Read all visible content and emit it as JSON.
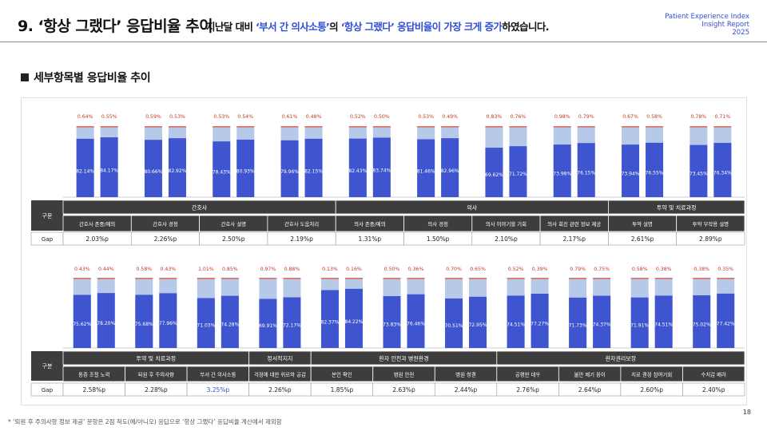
{
  "header": {
    "title": "9. ‘항상 그랬다’ 응답비율 추이",
    "subtitle_pre": "지난달 대비 ",
    "subtitle_hl1": "‘부서 간 의사소통’",
    "subtitle_mid": "의 ",
    "subtitle_hl2": "‘항상 그랬다’ 응답비율이 가장 크게 증가",
    "subtitle_post": "하였습니다.",
    "brand_line1": "Patient Experience Index",
    "brand_line2": "Insight Report",
    "brand_line3": "2025"
  },
  "section_title": "세부항목별 응답비율 추이",
  "footnote": "* ‘퇴원 후 주의사항 정보 제공’ 문항은 2점 척도(예/아니오) 응답으로 ‘항상 그랬다’ 응답비율 계산에서 제외함",
  "page_number": "18",
  "colors": {
    "dark_bar": "#3f54cf",
    "light_bar": "#b7c9e8",
    "top_bar": "#e06d5a",
    "table_header": "#3d3d3d",
    "highlight": "#2f4fd6"
  },
  "table_labels": {
    "row_header": "구분",
    "gap_label": "Gap"
  },
  "chart_data": [
    {
      "type": "bar",
      "stacked": true,
      "groups": [
        {
          "name": "간호사",
          "items": [
            {
              "label": "간호사 존중/예의",
              "gap": "2.03%p",
              "prev": {
                "main": "82.14%",
                "top": "0.64%",
                "main_v": 82.14
              },
              "curr": {
                "main": "84.17%",
                "top": "0.55%",
                "main_v": 84.17
              }
            },
            {
              "label": "간호사 경청",
              "gap": "2.26%p",
              "prev": {
                "main": "80.66%",
                "top": "0.59%",
                "main_v": 80.66
              },
              "curr": {
                "main": "82.92%",
                "top": "0.53%",
                "main_v": 82.92
              }
            },
            {
              "label": "간호사 설명",
              "gap": "2.50%p",
              "prev": {
                "main": "78.43%",
                "top": "0.53%",
                "main_v": 78.43
              },
              "curr": {
                "main": "80.93%",
                "top": "0.54%",
                "main_v": 80.93
              }
            },
            {
              "label": "간호사 도움처리",
              "gap": "2.19%p",
              "prev": {
                "main": "79.96%",
                "top": "0.61%",
                "main_v": 79.96
              },
              "curr": {
                "main": "82.15%",
                "top": "0.48%",
                "main_v": 82.15
              }
            }
          ]
        },
        {
          "name": "의사",
          "items": [
            {
              "label": "의사 존중/예의",
              "gap": "1.31%p",
              "prev": {
                "main": "82.43%",
                "top": "0.52%",
                "main_v": 82.43
              },
              "curr": {
                "main": "83.74%",
                "top": "0.50%",
                "main_v": 83.74
              }
            },
            {
              "label": "의사 경청",
              "gap": "1.50%p",
              "prev": {
                "main": "81.46%",
                "top": "0.53%",
                "main_v": 81.46
              },
              "curr": {
                "main": "82.96%",
                "top": "0.49%",
                "main_v": 82.96
              }
            },
            {
              "label": "의사 이야기할 기회",
              "gap": "2.10%p",
              "prev": {
                "main": "69.62%",
                "top": "0.83%",
                "main_v": 69.62
              },
              "curr": {
                "main": "71.72%",
                "top": "0.76%",
                "main_v": 71.72
              }
            },
            {
              "label": "의사 회진 관련 정보 제공",
              "gap": "2.17%p",
              "prev": {
                "main": "73.98%",
                "top": "0.98%",
                "main_v": 73.98
              },
              "curr": {
                "main": "76.15%",
                "top": "0.79%",
                "main_v": 76.15
              }
            }
          ]
        },
        {
          "name": "투약 및 치료과정",
          "items": [
            {
              "label": "투약 설명",
              "gap": "2.61%p",
              "prev": {
                "main": "73.94%",
                "top": "0.67%",
                "main_v": 73.94
              },
              "curr": {
                "main": "76.55%",
                "top": "0.58%",
                "main_v": 76.55
              }
            },
            {
              "label": "투약 부작용 설명",
              "gap": "2.89%p",
              "prev": {
                "main": "73.45%",
                "top": "0.78%",
                "main_v": 73.45
              },
              "curr": {
                "main": "76.34%",
                "top": "0.71%",
                "main_v": 76.34
              }
            }
          ]
        }
      ]
    },
    {
      "type": "bar",
      "stacked": true,
      "groups": [
        {
          "name": "투약 및 치료과정",
          "items": [
            {
              "label": "통증 조절 노력",
              "gap": "2.58%p",
              "prev": {
                "main": "75.62%",
                "top": "0.43%",
                "main_v": 75.62
              },
              "curr": {
                "main": "78.20%",
                "top": "0.44%",
                "main_v": 78.2
              }
            },
            {
              "label": "퇴원 후 주의사항",
              "gap": "2.28%p",
              "prev": {
                "main": "75.68%",
                "top": "0.58%",
                "main_v": 75.68
              },
              "curr": {
                "main": "77.96%",
                "top": "0.43%",
                "main_v": 77.96
              }
            },
            {
              "label": "부서 간 의사소통",
              "gap": "3.25%p",
              "highlight": true,
              "prev": {
                "main": "71.03%",
                "top": "1.01%",
                "main_v": 71.03
              },
              "curr": {
                "main": "74.28%",
                "top": "0.85%",
                "main_v": 74.28
              }
            }
          ]
        },
        {
          "name": "정서적지지",
          "items": [
            {
              "label": "걱정에 대한 위로와 공감",
              "gap": "2.26%p",
              "prev": {
                "main": "69.91%",
                "top": "0.97%",
                "main_v": 69.91
              },
              "curr": {
                "main": "72.17%",
                "top": "0.88%",
                "main_v": 72.17
              }
            }
          ]
        },
        {
          "name": "환자 안전과 병원환경",
          "items": [
            {
              "label": "본인 확인",
              "gap": "1.85%p",
              "prev": {
                "main": "82.37%",
                "top": "0.13%",
                "main_v": 82.37
              },
              "curr": {
                "main": "84.22%",
                "top": "0.16%",
                "main_v": 84.22
              }
            },
            {
              "label": "병원 안전",
              "gap": "2.63%p",
              "prev": {
                "main": "73.83%",
                "top": "0.50%",
                "main_v": 73.83
              },
              "curr": {
                "main": "76.46%",
                "top": "0.36%",
                "main_v": 76.46
              }
            },
            {
              "label": "병원 청결",
              "gap": "2.44%p",
              "prev": {
                "main": "70.51%",
                "top": "0.70%",
                "main_v": 70.51
              },
              "curr": {
                "main": "72.95%",
                "top": "0.65%",
                "main_v": 72.95
              }
            }
          ]
        },
        {
          "name": "환자권리보장",
          "items": [
            {
              "label": "공평한 대우",
              "gap": "2.76%p",
              "prev": {
                "main": "74.51%",
                "top": "0.52%",
                "main_v": 74.51
              },
              "curr": {
                "main": "77.27%",
                "top": "0.39%",
                "main_v": 77.27
              }
            },
            {
              "label": "불만 제기 용이",
              "gap": "2.64%p",
              "prev": {
                "main": "71.73%",
                "top": "0.79%",
                "main_v": 71.73
              },
              "curr": {
                "main": "74.37%",
                "top": "0.75%",
                "main_v": 74.37
              }
            },
            {
              "label": "치료 결정 참여기회",
              "gap": "2.60%p",
              "prev": {
                "main": "71.91%",
                "top": "0.58%",
                "main_v": 71.91
              },
              "curr": {
                "main": "74.51%",
                "top": "0.38%",
                "main_v": 74.51
              }
            },
            {
              "label": "수치감 배려",
              "gap": "2.40%p",
              "prev": {
                "main": "75.02%",
                "top": "0.38%",
                "main_v": 75.02
              },
              "curr": {
                "main": "77.42%",
                "top": "0.35%",
                "main_v": 77.42
              }
            }
          ]
        }
      ]
    }
  ]
}
